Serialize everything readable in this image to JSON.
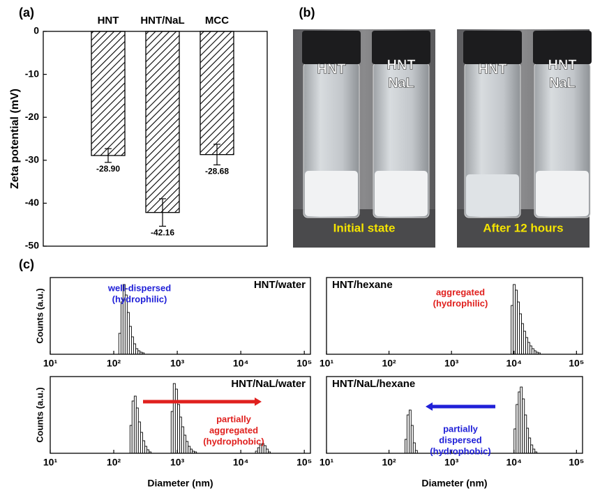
{
  "chart_data": [
    {
      "type": "bar",
      "panel_label": "(a)",
      "ylabel": "Zeta potential (mV)",
      "categories": [
        "HNT",
        "HNT/NaL",
        "MCC"
      ],
      "values": [
        -28.9,
        -42.16,
        -28.68
      ],
      "value_labels": [
        "-28.90",
        "-42.16",
        "-28.68"
      ],
      "errors": [
        1.6,
        3.2,
        2.4
      ],
      "color": "#000000",
      "ylim": [
        -50,
        0
      ],
      "yticks": [
        0,
        -10,
        -20,
        -30,
        -40,
        -50
      ]
    },
    {
      "type": "histogram",
      "panel_label": "(c)",
      "title": "HNT/water",
      "annotation": [
        "well-dispersed",
        "(hydrophilic)"
      ],
      "annotation_color": "#2020d8",
      "ylabel": "Counts (a.u.)",
      "log_x": true,
      "xlim": [
        10,
        125000
      ],
      "ylim": [
        0,
        110
      ],
      "xticks": [
        {
          "value": 10,
          "label": "10¹"
        },
        {
          "value": 100,
          "label": "10²"
        },
        {
          "value": 1000,
          "label": "10³"
        },
        {
          "value": 10000,
          "label": "10⁴"
        },
        {
          "value": 100000,
          "label": "10⁵"
        }
      ],
      "series": [
        {
          "color": "#000000",
          "bins": [
            120,
            130,
            140,
            151,
            163,
            176,
            190,
            205,
            222,
            240,
            259,
            280,
            302
          ],
          "values": [
            30,
            75,
            100,
            85,
            60,
            40,
            25,
            15,
            8,
            5,
            3,
            2
          ]
        }
      ]
    },
    {
      "type": "histogram",
      "title": "HNT/hexane",
      "annotation": [
        "aggregated",
        "(hydrophilic)"
      ],
      "annotation_color": "#e0201e",
      "log_x": true,
      "xlim": [
        10,
        125000
      ],
      "ylim": [
        0,
        110
      ],
      "xticks": [
        {
          "value": 10,
          "label": "10¹"
        },
        {
          "value": 100,
          "label": "10²"
        },
        {
          "value": 1000,
          "label": "10³"
        },
        {
          "value": 10000,
          "label": "10⁴"
        },
        {
          "value": 100000,
          "label": "10⁵"
        }
      ],
      "series": [
        {
          "color": "#000000",
          "bins": [
            9000,
            9700,
            10500,
            11300,
            12200,
            13200,
            14200,
            15400,
            16600,
            17900,
            19300,
            20900,
            22500,
            24300,
            26300
          ],
          "values": [
            70,
            100,
            92,
            75,
            58,
            44,
            33,
            24,
            17,
            12,
            8,
            5,
            3,
            2
          ]
        }
      ]
    },
    {
      "type": "histogram",
      "title": "HNT/NaL/water",
      "annotation": [
        "partially",
        "aggregated",
        "(hydrophobic)"
      ],
      "annotation_color": "#e0201e",
      "ylabel": "Counts (a.u.)",
      "xlabel": "Diameter (nm)",
      "log_x": true,
      "xlim": [
        10,
        125000
      ],
      "ylim": [
        0,
        110
      ],
      "xticks": [
        {
          "value": 10,
          "label": "10¹"
        },
        {
          "value": 100,
          "label": "10²"
        },
        {
          "value": 1000,
          "label": "10³"
        },
        {
          "value": 10000,
          "label": "10⁴"
        },
        {
          "value": 100000,
          "label": "10⁵"
        }
      ],
      "series": [
        {
          "color": "#000000",
          "bins": [
            180,
            194,
            210,
            226,
            244,
            264,
            285,
            308,
            332,
            359,
            388
          ],
          "values": [
            40,
            75,
            82,
            65,
            45,
            30,
            18,
            10,
            5,
            2
          ]
        },
        {
          "color": "#000000",
          "bins": [
            800,
            864,
            933,
            1010,
            1090,
            1170,
            1270,
            1370,
            1480,
            1600,
            1720,
            1860,
            2010
          ],
          "values": [
            60,
            100,
            92,
            70,
            52,
            38,
            26,
            17,
            10,
            6,
            3,
            2
          ]
        },
        {
          "color": "#000000",
          "bins": [
            17000,
            18400,
            19800,
            21400,
            23100,
            25000,
            27000,
            29200
          ],
          "values": [
            3,
            8,
            12,
            14,
            11,
            6,
            2
          ]
        }
      ]
    },
    {
      "type": "histogram",
      "title": "HNT/NaL/hexane",
      "annotation": [
        "partially",
        "dispersed",
        "(hydrophobic)"
      ],
      "annotation_color": "#2020d8",
      "xlabel": "Diameter (nm)",
      "log_x": true,
      "xlim": [
        10,
        125000
      ],
      "ylim": [
        0,
        110
      ],
      "xticks": [
        {
          "value": 10,
          "label": "10¹"
        },
        {
          "value": 100,
          "label": "10²"
        },
        {
          "value": 1000,
          "label": "10³"
        },
        {
          "value": 10000,
          "label": "10⁴"
        },
        {
          "value": 100000,
          "label": "10⁵"
        }
      ],
      "series": [
        {
          "color": "#000000",
          "bins": [
            180,
            194,
            210,
            226,
            244,
            264,
            285
          ],
          "values": [
            20,
            55,
            62,
            40,
            15,
            4
          ]
        },
        {
          "color": "#000000",
          "bins": [
            10000,
            10800,
            11700,
            12600,
            13600,
            14700,
            15900,
            17100,
            18500,
            20000,
            21600,
            23300
          ],
          "values": [
            35,
            70,
            88,
            95,
            78,
            55,
            36,
            22,
            12,
            6,
            2
          ]
        }
      ]
    }
  ],
  "photos": {
    "label": "(b)",
    "panels": [
      {
        "caption": "Initial state",
        "vial_labels": [
          [
            "HNT"
          ],
          [
            "HNT",
            "NaL"
          ]
        ]
      },
      {
        "caption": "After 12 hours",
        "vial_labels": [
          [
            "HNT"
          ],
          [
            "HNT",
            "NaL"
          ]
        ]
      }
    ]
  }
}
